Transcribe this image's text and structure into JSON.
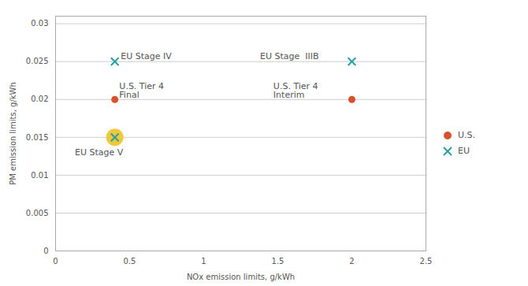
{
  "chart_data": {
    "type": "scatter",
    "xlabel": "NOx emission limits, g/kWh",
    "ylabel": "PM emission limits, g/kWh",
    "xlim": [
      0,
      2.5
    ],
    "ylim": [
      0,
      0.031
    ],
    "xticks": [
      0,
      0.5,
      1,
      1.5,
      2,
      2.5
    ],
    "yticks": [
      0,
      0.005,
      0.01,
      0.015,
      0.02,
      0.025,
      0.03
    ],
    "grid": true,
    "legend": "right",
    "series": [
      {
        "name": "U.S.",
        "color": "#d9512c",
        "marker": "circle",
        "x": [
          0.4,
          2.0
        ],
        "values": [
          0.02,
          0.02
        ]
      },
      {
        "name": "EU",
        "color": "#2a9fa3",
        "marker": "x",
        "x": [
          0.4,
          2.0,
          0.4
        ],
        "values": [
          0.025,
          0.025,
          0.015
        ]
      }
    ],
    "highlight": {
      "x": 0.4,
      "y": 0.015,
      "color": "#f0c93a"
    },
    "annotations": [
      {
        "text": "EU Stage IV",
        "x": 0.44,
        "y": 0.0253
      },
      {
        "text": "EU Stage  IIIB",
        "x": 1.38,
        "y": 0.0253
      },
      {
        "text": "U.S. Tier 4\nFinal",
        "x": 0.43,
        "y": 0.0202
      },
      {
        "text": "U.S. Tier 4\nInterim",
        "x": 1.47,
        "y": 0.0202
      },
      {
        "text": "EU Stage V",
        "x": 0.13,
        "y": 0.0135
      }
    ]
  }
}
